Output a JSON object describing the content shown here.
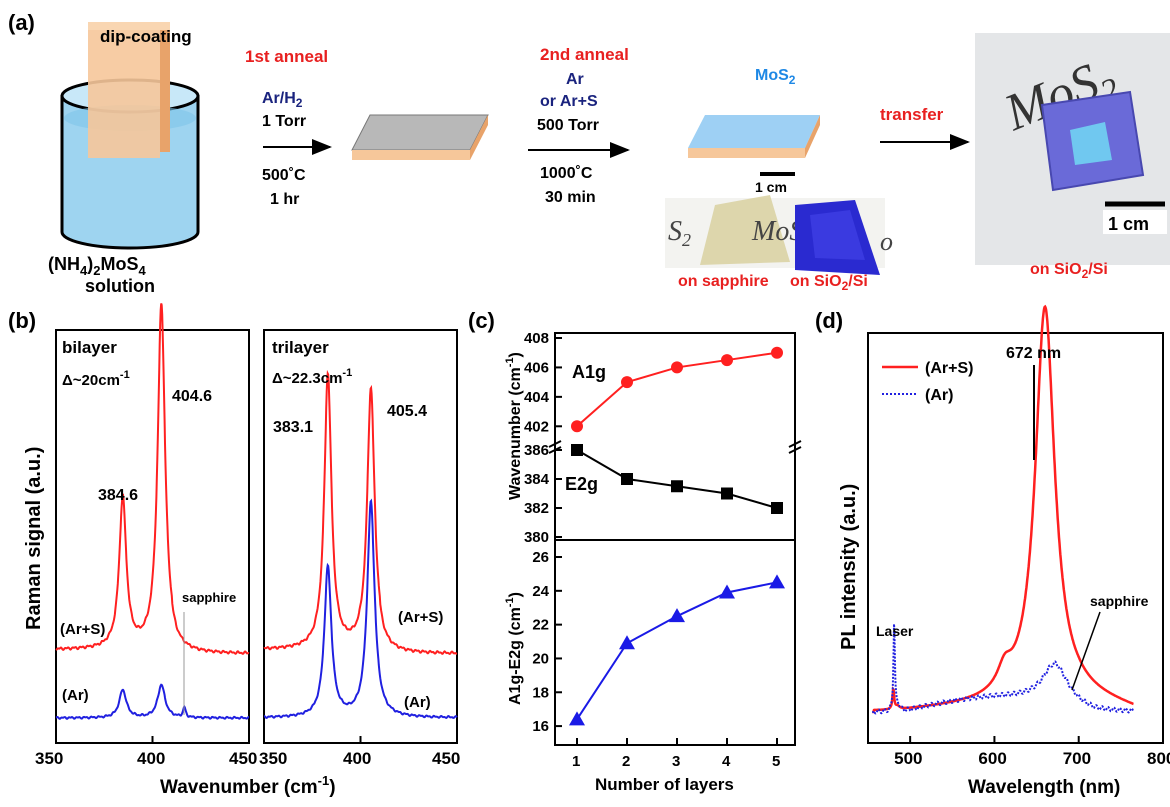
{
  "panel_a": {
    "label": "(a)",
    "dip": "dip-coating",
    "solution_line1": "(NH",
    "solution_sub1": "4",
    "solution_mid": ")",
    "solution_sub2": "2",
    "solution_end": "MoS",
    "solution_sub3": "4",
    "solution_line2": "solution",
    "anneal1_title": "1st anneal",
    "anneal1_gas": "Ar/H",
    "anneal1_gas_sub": "2",
    "anneal1_pressure": "1 Torr",
    "anneal1_temp": "500˚C",
    "anneal1_time": "1 hr",
    "anneal2_title": "2nd anneal",
    "anneal2_gas1": "Ar",
    "anneal2_gas2": "or Ar+S",
    "anneal2_pressure": "500 Torr",
    "anneal2_temp": "1000˚C",
    "anneal2_time": "30 min",
    "mos2_label": "MoS",
    "mos2_sub": "2",
    "scale1": "1 cm",
    "photo_text1": "S",
    "photo_text1_sub": "2",
    "photo_text2": "MoS",
    "photo_text3": "o",
    "on_sapphire": "on sapphire",
    "on_sio2_a": "on SiO",
    "on_sio2_sub": "2",
    "on_sio2_b": "/Si",
    "transfer": "transfer",
    "photo2_mos2": "MoS",
    "photo2_sub": "2",
    "scale2": "1 cm",
    "on_sio2_2a": "on SiO",
    "on_sio2_2sub": "2",
    "on_sio2_2b": "/Si"
  },
  "panel_b": {
    "label": "(b)",
    "ylabel": "Raman signal (a.u.)",
    "xlabel": "Wavenumber (cm",
    "xlabel_sup": "-1",
    "xlabel_end": ")",
    "left_title": "bilayer",
    "left_delta": "Δ~20cm",
    "left_delta_sup": "-1",
    "left_peak1": "384.6",
    "left_peak2": "404.6",
    "left_sapphire": "sapphire",
    "left_arS": "(Ar+S)",
    "left_ar": "(Ar)",
    "right_title": "trilayer",
    "right_delta": "Δ~22.3cm",
    "right_delta_sup": "-1",
    "right_peak1": "383.1",
    "right_peak2": "405.4",
    "right_arS": "(Ar+S)",
    "right_ar": "(Ar)",
    "ticks_left": [
      "350",
      "400",
      "450"
    ],
    "ticks_right": [
      "350",
      "400",
      "450"
    ]
  },
  "panel_c": {
    "label": "(c)",
    "ylabel_top": "Wavenumber (cm",
    "ylabel_top_sup": "-1",
    "ylabel_top_end": ")",
    "ylabel_bottom": "A1g-E2g (cm",
    "ylabel_bottom_sup": "-1",
    "ylabel_bottom_end": ")",
    "xlabel": "Number of layers",
    "a1g_label": "A1g",
    "e2g_label": "E2g",
    "x_ticks": [
      "1",
      "2",
      "3",
      "4",
      "5"
    ],
    "y_ticks_top_upper": [
      "402",
      "404",
      "406",
      "408"
    ],
    "y_ticks_top_lower": [
      "380",
      "382",
      "384",
      "386"
    ],
    "y_ticks_bottom": [
      "16",
      "18",
      "20",
      "22",
      "24",
      "26"
    ]
  },
  "panel_d": {
    "label": "(d)",
    "ylabel": "PL intensity (a.u.)",
    "xlabel": "Wavelength (nm)",
    "legend1": "(Ar+S)",
    "legend2": "(Ar)",
    "peak_label": "672 nm",
    "laser_label": "Laser",
    "sapphire_label": "sapphire",
    "x_ticks": [
      "500",
      "600",
      "700",
      "800"
    ]
  },
  "chart_data": [
    {
      "type": "line",
      "panel": "b-bilayer",
      "xlim": [
        350,
        450
      ],
      "series": [
        {
          "name": "(Ar+S)",
          "color": "#ff2020",
          "peaks": [
            384.6,
            404.6
          ]
        },
        {
          "name": "(Ar)",
          "color": "#2020e0"
        }
      ]
    },
    {
      "type": "line",
      "panel": "b-trilayer",
      "xlim": [
        350,
        450
      ],
      "series": [
        {
          "name": "(Ar+S)",
          "color": "#ff2020",
          "peaks": [
            383.1,
            405.4
          ]
        },
        {
          "name": "(Ar)",
          "color": "#2020e0"
        }
      ]
    },
    {
      "type": "line",
      "panel": "c-top",
      "x": [
        1,
        2,
        3,
        4,
        5
      ],
      "series": [
        {
          "name": "A1g",
          "color": "#ff2020",
          "values": [
            402,
            405,
            406,
            406.5,
            407
          ]
        },
        {
          "name": "E2g",
          "color": "#000000",
          "values": [
            386,
            384,
            383.5,
            383,
            382
          ]
        }
      ]
    },
    {
      "type": "line",
      "panel": "c-bottom",
      "x": [
        1,
        2,
        3,
        4,
        5
      ],
      "ylim": [
        15,
        26
      ],
      "series": [
        {
          "color": "#1a1ae6",
          "values": [
            16.4,
            20.9,
            22.5,
            23.9,
            24.5
          ]
        }
      ]
    },
    {
      "type": "line",
      "panel": "d",
      "xlim": [
        450,
        800
      ],
      "series": [
        {
          "name": "(Ar+S)",
          "color": "#ff2020"
        },
        {
          "name": "(Ar)",
          "color": "#2020e0"
        }
      ]
    }
  ]
}
